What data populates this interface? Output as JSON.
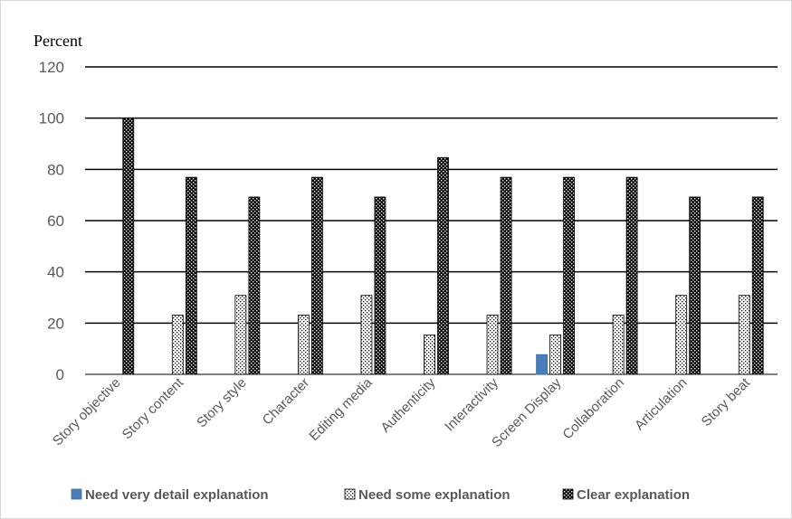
{
  "chart_data": {
    "type": "bar",
    "title": "",
    "xlabel": "",
    "ylabel": "Percent",
    "ylim": [
      0,
      120
    ],
    "yticks": [
      0,
      20,
      40,
      60,
      80,
      100,
      120
    ],
    "grid": true,
    "legend_position": "bottom",
    "categories": [
      "Story objective",
      "Story content",
      "Story style",
      "Character",
      "Editing media",
      "Authenticity",
      "Interactivity",
      "Screen Display",
      "Collaboration",
      "Articulation",
      "Story beat"
    ],
    "series": [
      {
        "name": "Need very detail explanation",
        "color": "#4a7ebb",
        "pattern": "solid",
        "values": [
          0,
          0,
          0,
          0,
          0,
          0,
          0,
          7.7,
          0,
          0,
          0
        ]
      },
      {
        "name": "Need some explanation",
        "color": "#ffffff",
        "pattern": "dots",
        "values": [
          0,
          23.1,
          30.8,
          23.1,
          30.8,
          15.4,
          23.1,
          15.4,
          23.1,
          30.8,
          30.8
        ]
      },
      {
        "name": "Clear explanation",
        "color": "#000000",
        "pattern": "checker",
        "values": [
          100,
          76.9,
          69.2,
          76.9,
          69.2,
          84.6,
          76.9,
          76.9,
          76.9,
          69.2,
          69.2
        ]
      }
    ]
  }
}
